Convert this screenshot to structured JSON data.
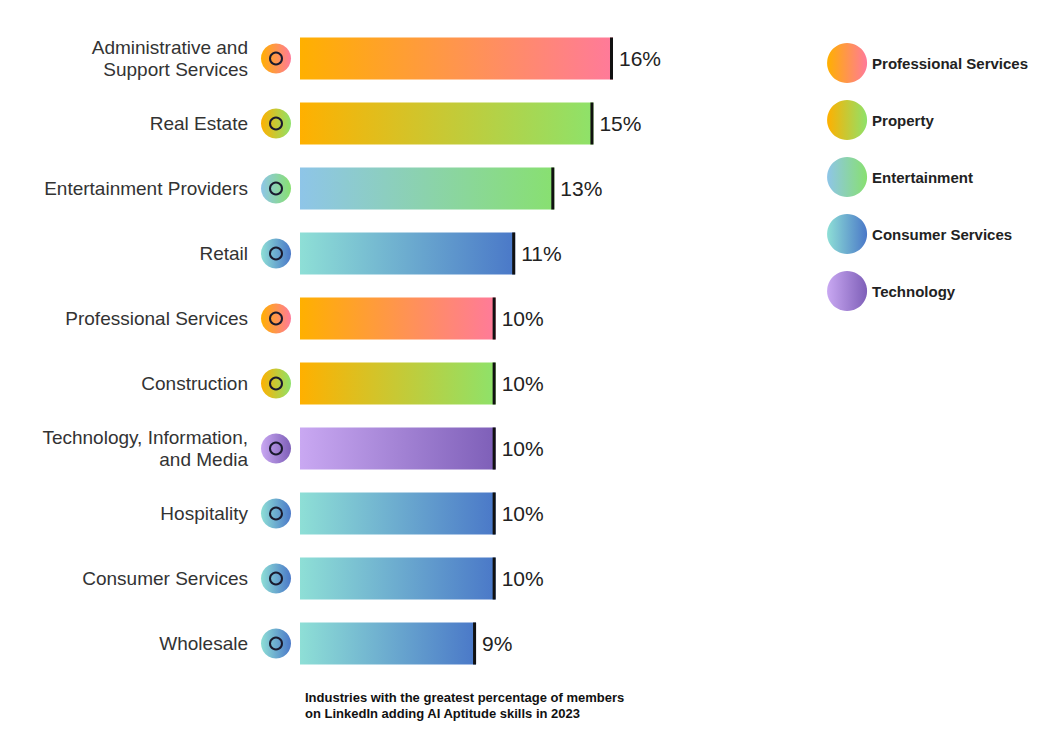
{
  "chart_data": {
    "type": "bar",
    "title": "Industries with the greatest percentage of members\non LinkedIn adding AI Aptitude skills in 2023",
    "orientation": "horizontal",
    "categories": [
      "Administrative and\nSupport Services",
      "Real Estate",
      "Entertainment Providers",
      "Retail",
      "Professional Services",
      "Construction",
      "Technology, Information,\nand Media",
      "Hospitality",
      "Consumer Services",
      "Wholesale"
    ],
    "series": [
      {
        "name": "Professional Services",
        "color": "#ff7a9a",
        "values": [
          16,
          null,
          null,
          null,
          10,
          null,
          null,
          null,
          null,
          null
        ],
        "value_labels": [
          "16%",
          null,
          null,
          null,
          "10%",
          null,
          null,
          null,
          null,
          null
        ]
      },
      {
        "name": "Property",
        "color": "#8ee26a",
        "values": [
          null,
          15,
          null,
          null,
          null,
          10,
          null,
          null,
          null,
          null
        ],
        "value_labels": [
          null,
          "15%",
          null,
          null,
          null,
          "10%",
          null,
          null,
          null,
          null
        ]
      },
      {
        "name": "Entertainment",
        "color": "#88e070",
        "values": [
          null,
          null,
          13,
          null,
          null,
          null,
          null,
          null,
          null,
          null
        ],
        "value_labels": [
          null,
          null,
          "13%",
          null,
          null,
          null,
          null,
          null,
          null,
          null
        ]
      },
      {
        "name": "Consumer Services",
        "color": "#4a78c8",
        "values": [
          null,
          null,
          null,
          11,
          null,
          null,
          null,
          10,
          10,
          9
        ],
        "value_labels": [
          null,
          null,
          null,
          "11%",
          null,
          null,
          null,
          "10%",
          "10%",
          "9%"
        ]
      },
      {
        "name": "Technology",
        "color": "#7e5fb8",
        "values": [
          null,
          null,
          null,
          null,
          null,
          null,
          10,
          null,
          null,
          null
        ],
        "value_labels": [
          null,
          null,
          null,
          null,
          null,
          null,
          "10%",
          null,
          null,
          null
        ]
      }
    ],
    "xlim": [
      0,
      16
    ],
    "data_labels": true,
    "tick_labels": "y",
    "grid": false,
    "legend": "right"
  }
}
